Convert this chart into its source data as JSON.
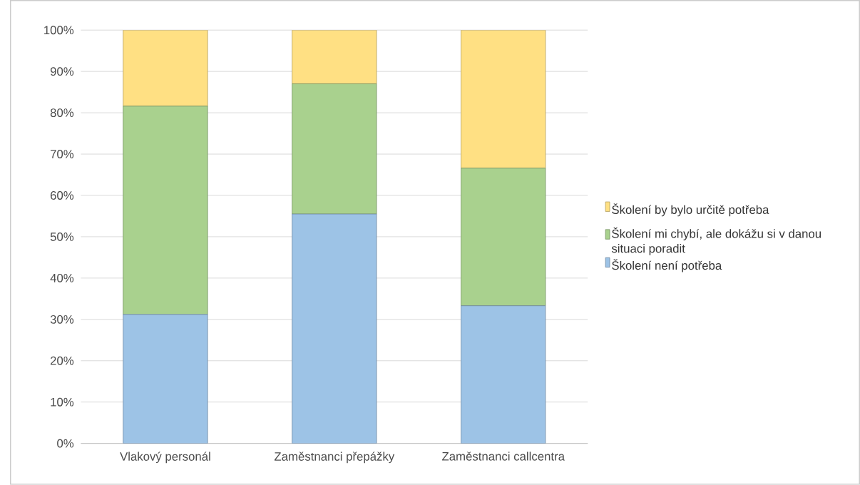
{
  "chart_data": {
    "type": "bar",
    "stacked": true,
    "categories": [
      "Vlakový personál",
      "Zaměstnanci přepážky",
      "Zaměstnanci callcentra"
    ],
    "series": [
      {
        "name": "Školení není potřeba",
        "color": "#9dc3e6",
        "values": [
          31.2,
          55.5,
          33.3
        ]
      },
      {
        "name": "Školení mi chybí, ale dokážu si v danou situaci poradit",
        "color": "#a9d18e",
        "values": [
          50.4,
          31.5,
          33.3
        ]
      },
      {
        "name": "Školení by bylo určitě potřeba",
        "color": "#ffe083",
        "values": [
          18.4,
          13.0,
          33.4
        ]
      }
    ],
    "ylim": [
      0,
      100
    ],
    "yticks": [
      {
        "value": 0,
        "label": "0%"
      },
      {
        "value": 10,
        "label": "10%"
      },
      {
        "value": 20,
        "label": "20%"
      },
      {
        "value": 30,
        "label": "30%"
      },
      {
        "value": 40,
        "label": "40%"
      },
      {
        "value": 50,
        "label": "50%"
      },
      {
        "value": 60,
        "label": "60%"
      },
      {
        "value": 70,
        "label": "70%"
      },
      {
        "value": 80,
        "label": "80%"
      },
      {
        "value": 90,
        "label": "90%"
      },
      {
        "value": 100,
        "label": "100%"
      }
    ],
    "grid": "y",
    "legend": "right"
  }
}
